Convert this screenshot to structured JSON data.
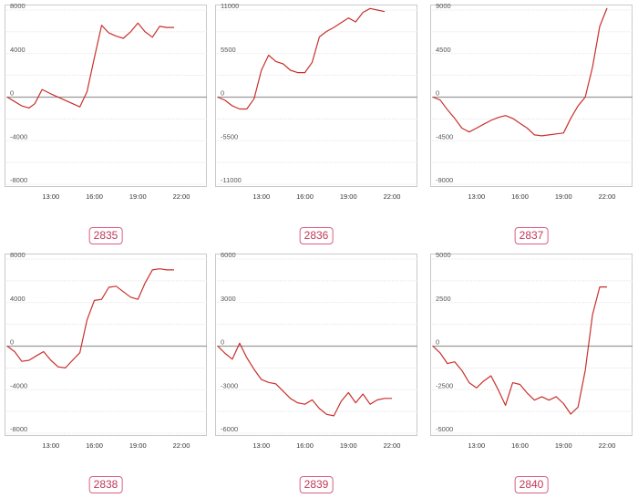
{
  "chart_data": [
    {
      "type": "line",
      "label": "2835",
      "ylim": [
        -8000,
        8000
      ],
      "yticks": [
        8000,
        4000,
        0,
        -4000,
        -8000
      ],
      "xticks": [
        "13:00",
        "16:00",
        "19:00",
        "22:00"
      ],
      "xlim": [
        10,
        22
      ],
      "grid": true,
      "color": "#c8312c",
      "x": [
        10.0,
        10.5,
        11.0,
        11.5,
        11.9,
        12.4,
        13.0,
        14.0,
        15.0,
        15.5,
        16.0,
        16.5,
        17.0,
        17.5,
        18.0,
        18.5,
        19.0,
        19.5,
        20.0,
        20.5,
        21.0,
        21.5
      ],
      "y": [
        0,
        -400,
        -800,
        -1000,
        -600,
        700,
        300,
        -300,
        -900,
        500,
        3600,
        6600,
        5900,
        5600,
        5400,
        6000,
        6800,
        6000,
        5500,
        6500,
        6400,
        6400
      ]
    },
    {
      "type": "line",
      "label": "2836",
      "ylim": [
        -11000,
        11000
      ],
      "yticks": [
        11000,
        5500,
        0,
        -5500,
        -11000
      ],
      "xticks": [
        "13:00",
        "16:00",
        "19:00",
        "22:00"
      ],
      "xlim": [
        10,
        22
      ],
      "grid": true,
      "color": "#c8312c",
      "x": [
        10.0,
        10.5,
        11.0,
        11.5,
        12.0,
        12.5,
        13.0,
        13.5,
        14.0,
        14.5,
        15.0,
        15.5,
        16.0,
        16.5,
        17.0,
        17.5,
        18.0,
        18.5,
        19.0,
        19.5,
        20.0,
        20.5,
        21.0,
        21.5
      ],
      "y": [
        0,
        -400,
        -1100,
        -1500,
        -1500,
        -200,
        3400,
        5300,
        4500,
        4200,
        3400,
        3100,
        3100,
        4400,
        7600,
        8300,
        8800,
        9400,
        10000,
        9500,
        10700,
        11200,
        11000,
        10800
      ]
    },
    {
      "type": "line",
      "label": "2837",
      "ylim": [
        -9000,
        9000
      ],
      "yticks": [
        9000,
        4500,
        0,
        -4500,
        -9000
      ],
      "xticks": [
        "13:00",
        "16:00",
        "19:00",
        "22:00"
      ],
      "xlim": [
        10,
        22
      ],
      "grid": true,
      "color": "#c8312c",
      "x": [
        10.0,
        10.5,
        11.0,
        11.5,
        12.0,
        12.5,
        13.0,
        13.5,
        14.0,
        14.5,
        15.0,
        15.5,
        16.0,
        16.5,
        17.0,
        17.5,
        18.0,
        18.5,
        19.0,
        19.5,
        20.0,
        20.5,
        21.0,
        21.5,
        22.0
      ],
      "y": [
        0,
        -300,
        -1300,
        -2200,
        -3200,
        -3600,
        -3200,
        -2800,
        -2400,
        -2100,
        -1900,
        -2200,
        -2700,
        -3200,
        -3900,
        -4000,
        -3900,
        -3800,
        -3700,
        -2200,
        -900,
        0,
        3100,
        7300,
        9200
      ]
    },
    {
      "type": "line",
      "label": "2838",
      "ylim": [
        -8000,
        8000
      ],
      "yticks": [
        8000,
        4000,
        0,
        -4000,
        -8000
      ],
      "xticks": [
        "13:00",
        "16:00",
        "19:00",
        "22:00"
      ],
      "xlim": [
        10,
        22
      ],
      "grid": true,
      "color": "#c8312c",
      "x": [
        10.0,
        10.5,
        11.0,
        11.5,
        12.0,
        12.5,
        13.0,
        13.5,
        14.0,
        14.5,
        15.0,
        15.5,
        16.0,
        16.5,
        17.0,
        17.5,
        18.0,
        18.5,
        19.0,
        19.5,
        20.0,
        20.5,
        21.0,
        21.5
      ],
      "y": [
        0,
        -500,
        -1400,
        -1300,
        -900,
        -500,
        -1300,
        -1900,
        -2000,
        -1300,
        -600,
        2400,
        4200,
        4300,
        5400,
        5500,
        5000,
        4500,
        4300,
        5800,
        7000,
        7100,
        7000,
        7000
      ]
    },
    {
      "type": "line",
      "label": "2839",
      "ylim": [
        -6000,
        6000
      ],
      "yticks": [
        6000,
        3000,
        0,
        -3000,
        -6000
      ],
      "xticks": [
        "13:00",
        "16:00",
        "19:00",
        "22:00"
      ],
      "xlim": [
        10,
        22
      ],
      "grid": true,
      "color": "#c8312c",
      "x": [
        10.0,
        10.5,
        11.0,
        11.5,
        12.0,
        12.5,
        13.0,
        13.5,
        14.0,
        14.5,
        15.0,
        15.5,
        16.0,
        16.5,
        17.0,
        17.5,
        18.0,
        18.5,
        19.0,
        19.5,
        20.0,
        20.5,
        21.0,
        21.5,
        22.0
      ],
      "y": [
        0,
        -500,
        -900,
        200,
        -800,
        -1600,
        -2300,
        -2500,
        -2600,
        -3100,
        -3600,
        -3900,
        -4000,
        -3700,
        -4300,
        -4700,
        -4800,
        -3800,
        -3200,
        -3900,
        -3300,
        -4000,
        -3700,
        -3600,
        -3600
      ]
    },
    {
      "type": "line",
      "label": "2840",
      "ylim": [
        -5000,
        5000
      ],
      "yticks": [
        5000,
        2500,
        0,
        -2500,
        -5000
      ],
      "xticks": [
        "13:00",
        "16:00",
        "19:00",
        "22:00"
      ],
      "xlim": [
        10,
        22
      ],
      "grid": true,
      "color": "#c8312c",
      "x": [
        10.0,
        10.5,
        11.0,
        11.5,
        12.0,
        12.5,
        13.0,
        13.5,
        14.0,
        14.5,
        15.0,
        15.5,
        16.0,
        16.5,
        17.0,
        17.5,
        18.0,
        18.5,
        19.0,
        19.5,
        20.0,
        20.5,
        21.0,
        21.5,
        22.0
      ],
      "y": [
        0,
        -400,
        -1000,
        -900,
        -1400,
        -2100,
        -2400,
        -2000,
        -1700,
        -2500,
        -3400,
        -2100,
        -2200,
        -2700,
        -3100,
        -2900,
        -3100,
        -2900,
        -3300,
        -3900,
        -3500,
        -1400,
        1800,
        3400,
        3400
      ]
    }
  ]
}
